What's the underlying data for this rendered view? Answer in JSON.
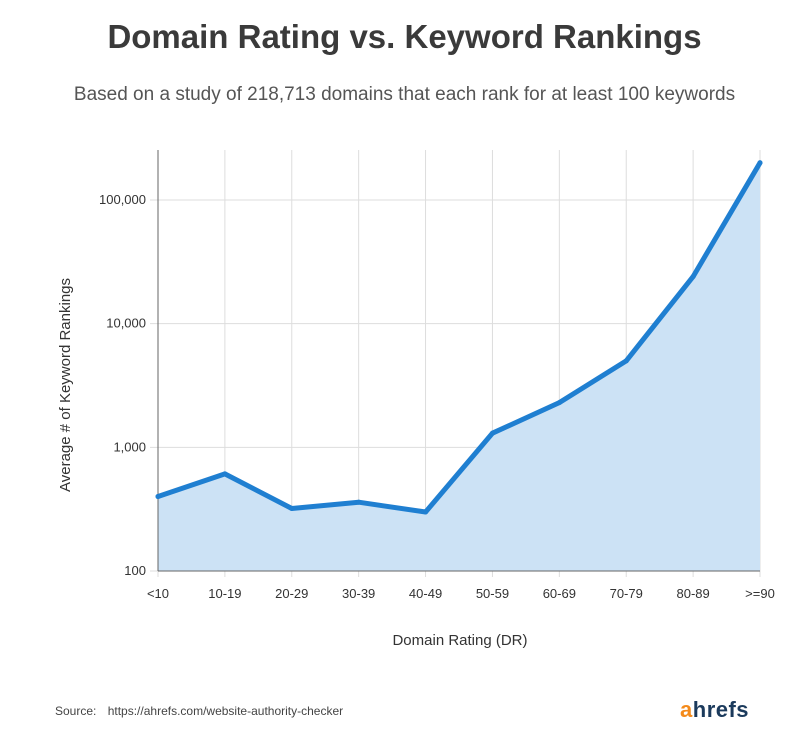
{
  "chart_data": {
    "type": "area",
    "title": "Domain Rating vs. Keyword Rankings",
    "subtitle": "Based on a study of 218,713 domains that each rank for at least 100 keywords",
    "xlabel": "Domain Rating (DR)",
    "ylabel": "Average # of Keyword Rankings",
    "yscale": "log",
    "ylim": [
      100,
      200000
    ],
    "yticks": [
      100,
      1000,
      10000,
      100000
    ],
    "ytick_labels": [
      "100",
      "1,000",
      "10,000",
      "100,000"
    ],
    "categories": [
      "<10",
      "10-19",
      "20-29",
      "30-39",
      "40-49",
      "50-59",
      "60-69",
      "70-79",
      "80-89",
      ">=90"
    ],
    "values": [
      400,
      610,
      320,
      360,
      300,
      1300,
      2300,
      5000,
      24000,
      200000
    ],
    "grid": true,
    "line_color": "#1f7fd1",
    "fill_color": "#cce2f5"
  },
  "source": {
    "label": "Source:",
    "url": "https://ahrefs.com/website-authority-checker"
  },
  "brand": {
    "first_letter": "a",
    "rest": "hrefs"
  }
}
